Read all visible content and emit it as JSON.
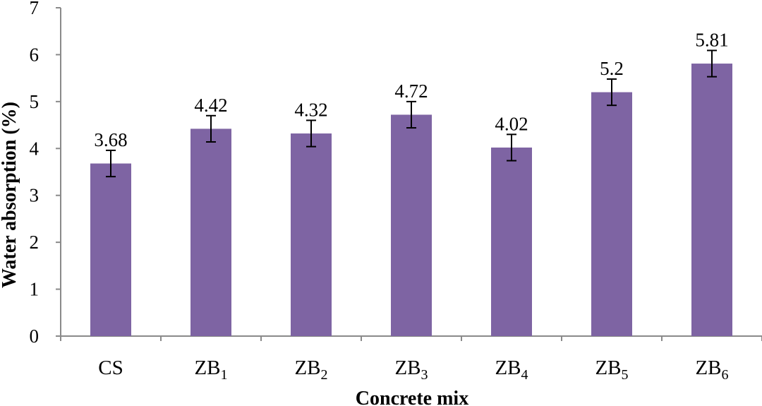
{
  "colors": {
    "bar": "#7e64a3",
    "axis": "#8a8a8a",
    "error_bar": "#000000"
  },
  "chart_data": {
    "type": "bar",
    "categories": [
      {
        "base": "CS",
        "sub": ""
      },
      {
        "base": "ZB",
        "sub": "1"
      },
      {
        "base": "ZB",
        "sub": "2"
      },
      {
        "base": "ZB",
        "sub": "3"
      },
      {
        "base": "ZB",
        "sub": "4"
      },
      {
        "base": "ZB",
        "sub": "5"
      },
      {
        "base": "ZB",
        "sub": "6"
      }
    ],
    "values": [
      3.68,
      4.42,
      4.32,
      4.72,
      4.02,
      5.2,
      5.81
    ],
    "data_labels": [
      "3.68",
      "4.42",
      "4.32",
      "4.72",
      "4.02",
      "5.2",
      "5.81"
    ],
    "error": [
      0.28,
      0.28,
      0.28,
      0.28,
      0.28,
      0.28,
      0.28
    ],
    "title": "",
    "xlabel": "Concrete mix",
    "ylabel": "Water absorption    (%)",
    "ylim": [
      0,
      7
    ],
    "yticks": [
      0,
      1,
      2,
      3,
      4,
      5,
      6,
      7
    ],
    "grid": false,
    "legend": "none"
  }
}
